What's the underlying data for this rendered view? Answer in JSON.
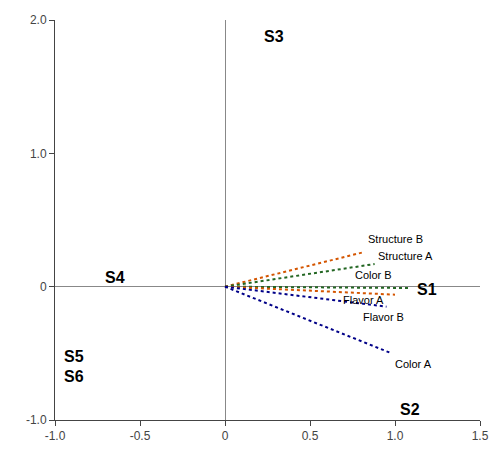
{
  "chart_data": {
    "type": "biplot",
    "xlim": [
      -1.0,
      1.5
    ],
    "ylim": [
      -1.0,
      2.0
    ],
    "xticks": [
      {
        "value": -1.0,
        "label": "-1.0"
      },
      -0.5,
      0,
      0.5,
      {
        "value": 1.0,
        "label": "1.0"
      },
      1.5
    ],
    "yticks": [
      {
        "value": -1.0,
        "label": "-1.0"
      },
      0,
      {
        "value": 1.0,
        "label": "1.0"
      },
      {
        "value": 2.0,
        "label": "2.0"
      }
    ],
    "grid": false,
    "series": [
      {
        "name": "Structure B",
        "color": "#d45500",
        "line_style": "dotted",
        "x": [
          0,
          0.82
        ],
        "y": [
          0,
          0.26
        ]
      },
      {
        "name": "Structure A",
        "color": "#226622",
        "line_style": "dotted",
        "x": [
          0,
          0.88
        ],
        "y": [
          0,
          0.17
        ]
      },
      {
        "name": "Color B",
        "color": "#226622",
        "line_style": "dotted",
        "x": [
          0,
          1.08
        ],
        "y": [
          0,
          -0.01
        ]
      },
      {
        "name": "Flavor A",
        "color": "#d45500",
        "line_style": "dotted",
        "x": [
          0,
          1.0
        ],
        "y": [
          0,
          -0.06
        ]
      },
      {
        "name": "Flavor B",
        "color": "#000088",
        "line_style": "dotted",
        "x": [
          0,
          0.95
        ],
        "y": [
          0,
          -0.15
        ]
      },
      {
        "name": "Color A",
        "color": "#000088",
        "line_style": "dotted",
        "x": [
          0,
          0.98
        ],
        "y": [
          0,
          -0.5
        ]
      }
    ],
    "annotations": [
      {
        "text": "Structure B",
        "x": 0.83,
        "y": 0.3
      },
      {
        "text": "Structure A",
        "x": 0.89,
        "y": 0.17
      },
      {
        "text": "Color B",
        "x": 0.75,
        "y": 0.03
      },
      {
        "text": "Flavor A",
        "x": 0.68,
        "y": -0.04
      },
      {
        "text": "Flavor B",
        "x": 0.8,
        "y": -0.17
      },
      {
        "text": "Color A",
        "x": 0.99,
        "y": -0.52
      }
    ],
    "samples": [
      {
        "label": "S1",
        "x": 1.12,
        "y": -0.02
      },
      {
        "label": "S2",
        "x": 1.02,
        "y": -0.92
      },
      {
        "label": "S3",
        "x": 0.22,
        "y": 1.88
      },
      {
        "label": "S4",
        "x": -0.72,
        "y": 0.07
      },
      {
        "label": "S5",
        "x": -0.96,
        "y": -0.52
      },
      {
        "label": "S6",
        "x": -0.96,
        "y": -0.67
      }
    ]
  }
}
